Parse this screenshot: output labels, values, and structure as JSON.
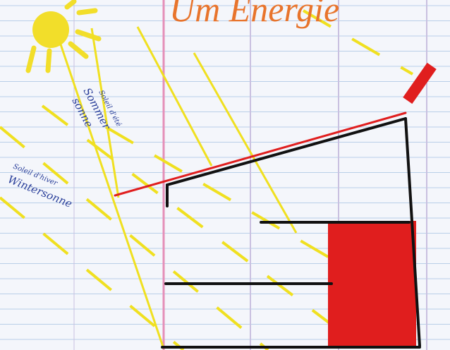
{
  "title": "Um Energie",
  "labels": [
    "Soleil d'été",
    "Sommer",
    "sonne",
    "Soleil d'hiver",
    "Wintersonne"
  ]
}
